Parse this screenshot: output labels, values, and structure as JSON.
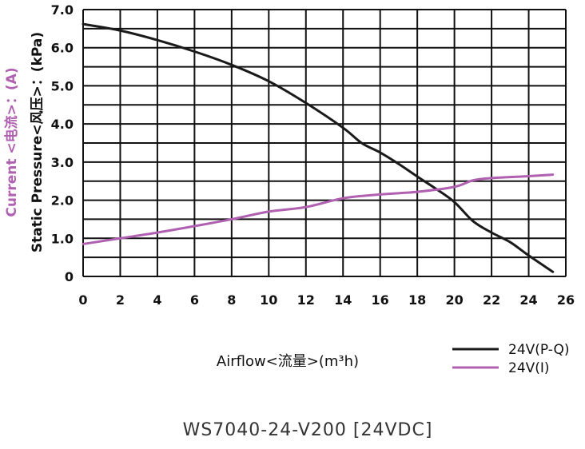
{
  "chart_data": {
    "type": "line",
    "xlabel": "Airflow<流量>(m³h)",
    "ylabel_pressure": "Static Pressure<风压>：(kPa)",
    "ylabel_current": "Current  <电流>：(A)",
    "footer": "WS7040-24-V200  [24VDC]",
    "xlim": [
      0,
      26
    ],
    "ylim": [
      0,
      7
    ],
    "x_ticks": [
      0,
      2,
      4,
      6,
      8,
      10,
      12,
      14,
      16,
      18,
      20,
      22,
      24,
      26
    ],
    "y_ticks": [
      0,
      1,
      2,
      3,
      4,
      5,
      6,
      7
    ],
    "x_tick_labels": [
      "0",
      "2",
      "4",
      "6",
      "8",
      "10",
      "12",
      "14",
      "16",
      "18",
      "20",
      "22",
      "24",
      "26"
    ],
    "y_tick_labels": [
      "0",
      "1.0",
      "2.0",
      "3.0",
      "4.0",
      "5.0",
      "6.0",
      "7.0"
    ],
    "grid": true,
    "legend_position": "bottom-right",
    "series": [
      {
        "name": "24V(P-Q)",
        "color": "#1a1a1a",
        "points": [
          [
            0,
            6.62
          ],
          [
            2,
            6.45
          ],
          [
            4,
            6.2
          ],
          [
            6,
            5.9
          ],
          [
            8,
            5.55
          ],
          [
            10,
            5.12
          ],
          [
            12,
            4.55
          ],
          [
            14,
            3.9
          ],
          [
            15,
            3.5
          ],
          [
            16,
            3.25
          ],
          [
            17,
            2.95
          ],
          [
            18,
            2.62
          ],
          [
            19,
            2.3
          ],
          [
            20,
            1.95
          ],
          [
            21,
            1.45
          ],
          [
            22,
            1.15
          ],
          [
            23,
            0.9
          ],
          [
            24,
            0.55
          ],
          [
            25.3,
            0.12
          ]
        ]
      },
      {
        "name": "24V(I)",
        "color": "#b060b0",
        "points": [
          [
            0,
            0.85
          ],
          [
            2,
            1.0
          ],
          [
            4,
            1.15
          ],
          [
            6,
            1.32
          ],
          [
            8,
            1.5
          ],
          [
            10,
            1.7
          ],
          [
            12,
            1.82
          ],
          [
            14,
            2.05
          ],
          [
            16,
            2.15
          ],
          [
            18,
            2.22
          ],
          [
            20,
            2.35
          ],
          [
            21,
            2.52
          ],
          [
            22,
            2.58
          ],
          [
            24,
            2.63
          ],
          [
            25.3,
            2.67
          ]
        ]
      }
    ]
  }
}
